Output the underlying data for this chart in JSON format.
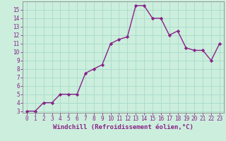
{
  "xlabel": "Windchill (Refroidissement éolien,°C)",
  "x": [
    0,
    1,
    2,
    3,
    4,
    5,
    6,
    7,
    8,
    9,
    10,
    11,
    12,
    13,
    14,
    15,
    16,
    17,
    18,
    19,
    20,
    21,
    22,
    23
  ],
  "y": [
    3.0,
    3.0,
    4.0,
    4.0,
    5.0,
    5.0,
    5.0,
    7.5,
    8.0,
    8.5,
    11.0,
    11.5,
    11.8,
    15.5,
    15.5,
    14.0,
    14.0,
    12.0,
    12.5,
    10.5,
    10.2,
    10.2,
    9.0,
    11.0
  ],
  "line_color": "#882288",
  "marker": "D",
  "marker_size": 2.2,
  "background_color": "#cceedd",
  "grid_color": "#aaddcc",
  "xlim_min": -0.5,
  "xlim_max": 23.5,
  "ylim_min": 2.8,
  "ylim_max": 16.0,
  "yticks": [
    3,
    4,
    5,
    6,
    7,
    8,
    9,
    10,
    11,
    12,
    13,
    14,
    15
  ],
  "xticks": [
    0,
    1,
    2,
    3,
    4,
    5,
    6,
    7,
    8,
    9,
    10,
    11,
    12,
    13,
    14,
    15,
    16,
    17,
    18,
    19,
    20,
    21,
    22,
    23
  ],
  "tick_color": "#882288",
  "label_color": "#882288",
  "fontsize_xlabel": 6.5,
  "fontsize_ticks": 5.5,
  "linewidth": 1.0
}
